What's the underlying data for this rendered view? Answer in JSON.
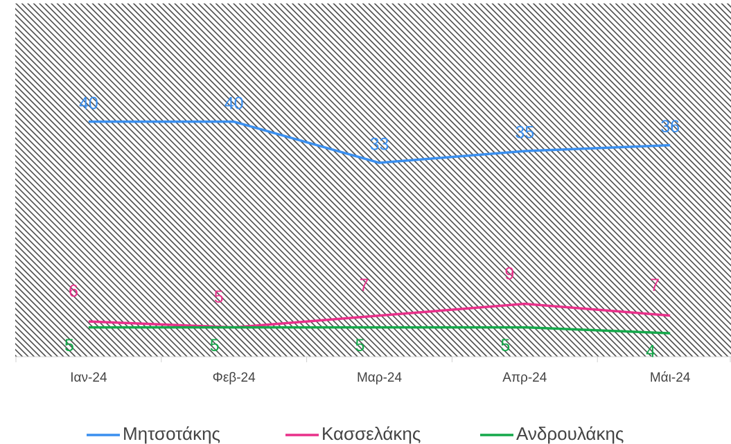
{
  "chart_data": {
    "type": "line",
    "categories": [
      "Ιαν-24",
      "Φεβ-24",
      "Μαρ-24",
      "Απρ-24",
      "Μάι-24"
    ],
    "series": [
      {
        "name": "Μητσοτάκης",
        "color": "#3a8fef",
        "values": [
          40,
          40,
          33,
          35,
          36
        ]
      },
      {
        "name": "Κασσελάκης",
        "color": "#e8308a",
        "values": [
          6,
          5,
          7,
          9,
          7
        ]
      },
      {
        "name": "Ανδρουλάκης",
        "color": "#14a84a",
        "values": [
          5,
          5,
          5,
          5,
          4
        ]
      }
    ],
    "ylim": [
      0,
      60
    ],
    "legend": "bottom"
  }
}
